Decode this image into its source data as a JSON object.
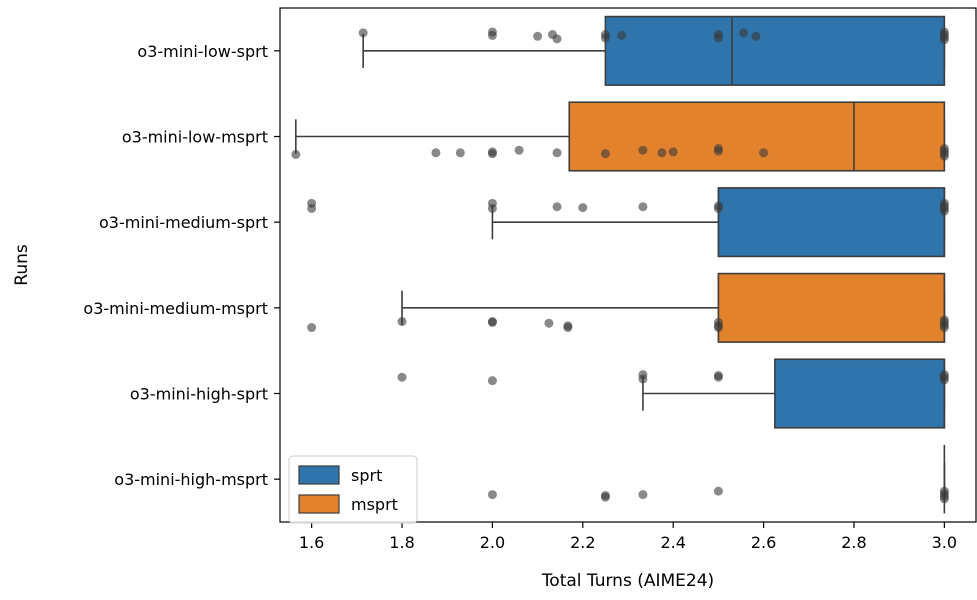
{
  "chart_data": {
    "type": "box",
    "orientation": "horizontal",
    "title": "",
    "xlabel": "Total Turns (AIME24)",
    "ylabel": "Runs",
    "xlim": [
      1.53,
      3.07
    ],
    "xticks": [
      1.6,
      1.8,
      2.0,
      2.2,
      2.4,
      2.6,
      2.8,
      3.0
    ],
    "xtick_labels": [
      "1.6",
      "1.8",
      "2.0",
      "2.2",
      "2.4",
      "2.6",
      "2.8",
      "3.0"
    ],
    "categories": [
      "o3-mini-low-sprt",
      "o3-mini-low-msprt",
      "o3-mini-medium-sprt",
      "o3-mini-medium-msprt",
      "o3-mini-high-sprt",
      "o3-mini-high-msprt"
    ],
    "legend": {
      "position": "lower-left",
      "entries": [
        {
          "label": "sprt",
          "color": "#2f74aa"
        },
        {
          "label": "msprt",
          "color": "#e3822c"
        }
      ]
    },
    "grid": false,
    "boxes": [
      {
        "category": "o3-mini-low-sprt",
        "series": "sprt",
        "whisker_low": 1.714,
        "q1": 2.25,
        "median": 2.53,
        "q3": 3.0,
        "whisker_high": 3.0
      },
      {
        "category": "o3-mini-low-msprt",
        "series": "msprt",
        "whisker_low": 1.565,
        "q1": 2.17,
        "median": 2.8,
        "q3": 3.0,
        "whisker_high": 3.0
      },
      {
        "category": "o3-mini-medium-sprt",
        "series": "sprt",
        "whisker_low": 2.0,
        "q1": 2.5,
        "median": 3.0,
        "q3": 3.0,
        "whisker_high": 3.0
      },
      {
        "category": "o3-mini-medium-msprt",
        "series": "msprt",
        "whisker_low": 1.8,
        "q1": 2.5,
        "median": 3.0,
        "q3": 3.0,
        "whisker_high": 3.0
      },
      {
        "category": "o3-mini-high-sprt",
        "series": "sprt",
        "whisker_low": 2.333,
        "q1": 2.625,
        "median": 3.0,
        "q3": 3.0,
        "whisker_high": 3.0
      },
      {
        "category": "o3-mini-high-msprt",
        "series": "msprt",
        "whisker_low": 3.0,
        "q1": 3.0,
        "median": 3.0,
        "q3": 3.0,
        "whisker_high": 3.0
      }
    ],
    "strip_points": [
      {
        "category": "o3-mini-low-sprt",
        "points": [
          [
            1.714,
            -0.21
          ],
          [
            2.0,
            -0.22
          ],
          [
            2.0,
            -0.18
          ],
          [
            2.1,
            -0.17
          ],
          [
            2.133,
            -0.19
          ],
          [
            2.143,
            -0.14
          ],
          [
            2.25,
            -0.19
          ],
          [
            2.25,
            -0.15
          ],
          [
            2.286,
            -0.18
          ],
          [
            2.5,
            -0.19
          ],
          [
            2.5,
            -0.15
          ],
          [
            2.556,
            -0.21
          ],
          [
            2.583,
            -0.17
          ],
          [
            3.0,
            -0.22
          ],
          [
            3.0,
            -0.19
          ],
          [
            3.0,
            -0.16
          ],
          [
            3.0,
            -0.13
          ]
        ]
      },
      {
        "category": "o3-mini-low-msprt",
        "points": [
          [
            1.565,
            0.21
          ],
          [
            1.875,
            0.19
          ],
          [
            1.929,
            0.19
          ],
          [
            2.0,
            0.2
          ],
          [
            2.0,
            0.18
          ],
          [
            2.059,
            0.16
          ],
          [
            2.143,
            0.19
          ],
          [
            2.25,
            0.2
          ],
          [
            2.333,
            0.16
          ],
          [
            2.375,
            0.19
          ],
          [
            2.4,
            0.18
          ],
          [
            2.5,
            0.14
          ],
          [
            2.5,
            0.17
          ],
          [
            2.6,
            0.19
          ],
          [
            3.0,
            0.14
          ],
          [
            3.0,
            0.17
          ],
          [
            3.0,
            0.2
          ],
          [
            3.0,
            0.23
          ]
        ]
      },
      {
        "category": "o3-mini-medium-sprt",
        "points": [
          [
            1.6,
            -0.22
          ],
          [
            1.6,
            -0.16
          ],
          [
            2.0,
            -0.22
          ],
          [
            2.0,
            -0.16
          ],
          [
            2.143,
            -0.18
          ],
          [
            2.2,
            -0.17
          ],
          [
            2.333,
            -0.18
          ],
          [
            2.5,
            -0.19
          ],
          [
            2.5,
            -0.16
          ],
          [
            3.0,
            -0.22
          ],
          [
            3.0,
            -0.19
          ],
          [
            3.0,
            -0.16
          ],
          [
            3.0,
            -0.13
          ]
        ]
      },
      {
        "category": "o3-mini-medium-msprt",
        "points": [
          [
            1.6,
            0.23
          ],
          [
            1.8,
            0.16
          ],
          [
            2.0,
            0.16
          ],
          [
            2.0,
            0.17
          ],
          [
            2.125,
            0.18
          ],
          [
            2.167,
            0.21
          ],
          [
            2.167,
            0.23
          ],
          [
            2.5,
            0.17
          ],
          [
            2.5,
            0.21
          ],
          [
            2.5,
            0.23
          ],
          [
            3.0,
            0.14
          ],
          [
            3.0,
            0.17
          ],
          [
            3.0,
            0.2
          ],
          [
            3.0,
            0.23
          ]
        ]
      },
      {
        "category": "o3-mini-high-sprt",
        "points": [
          [
            1.8,
            -0.19
          ],
          [
            2.0,
            -0.15
          ],
          [
            2.333,
            -0.22
          ],
          [
            2.333,
            -0.17
          ],
          [
            2.5,
            -0.21
          ],
          [
            2.5,
            -0.19
          ],
          [
            3.0,
            -0.22
          ],
          [
            3.0,
            -0.19
          ],
          [
            3.0,
            -0.16
          ]
        ]
      },
      {
        "category": "o3-mini-high-msprt",
        "points": [
          [
            2.0,
            0.18
          ],
          [
            2.25,
            0.19
          ],
          [
            2.25,
            0.21
          ],
          [
            2.333,
            0.18
          ],
          [
            2.5,
            0.14
          ],
          [
            3.0,
            0.14
          ],
          [
            3.0,
            0.17
          ],
          [
            3.0,
            0.2
          ],
          [
            3.0,
            0.23
          ]
        ]
      }
    ]
  }
}
